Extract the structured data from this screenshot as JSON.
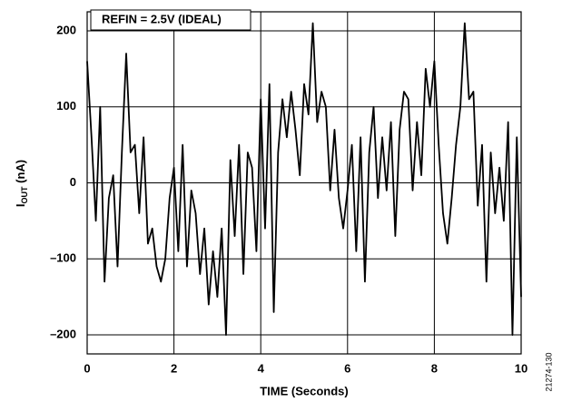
{
  "chart_data": {
    "type": "line",
    "annotation": "REFIN = 2.5V (IDEAL)",
    "x_label": "TIME (Seconds)",
    "y_label_parts": [
      "I",
      "OUT",
      " (nA)"
    ],
    "figure_id": "21274-130",
    "color": "#000000",
    "grid": true,
    "xlim": [
      0,
      10
    ],
    "ylim": [
      -225,
      225
    ],
    "xticks": [
      0,
      2,
      4,
      6,
      8,
      10
    ],
    "yticks": [
      {
        "value": -200,
        "label": "–200"
      },
      {
        "value": -100,
        "label": "–100"
      },
      0,
      100,
      200
    ],
    "x": [
      0,
      0.1,
      0.2,
      0.3,
      0.4,
      0.5,
      0.6,
      0.7,
      0.8,
      0.9,
      1,
      1.1,
      1.2,
      1.3,
      1.4,
      1.5,
      1.6,
      1.7,
      1.8,
      1.9,
      2,
      2.1,
      2.2,
      2.3,
      2.4,
      2.5,
      2.6,
      2.7,
      2.8,
      2.9,
      3,
      3.1,
      3.2,
      3.3,
      3.4,
      3.5,
      3.6,
      3.7,
      3.8,
      3.9,
      4,
      4.1,
      4.2,
      4.3,
      4.4,
      4.5,
      4.6,
      4.7,
      4.8,
      4.9,
      5,
      5.1,
      5.2,
      5.3,
      5.4,
      5.5,
      5.6,
      5.7,
      5.8,
      5.9,
      6,
      6.1,
      6.2,
      6.3,
      6.4,
      6.5,
      6.6,
      6.7,
      6.8,
      6.9,
      7,
      7.1,
      7.2,
      7.3,
      7.4,
      7.5,
      7.6,
      7.7,
      7.8,
      7.9,
      8,
      8.1,
      8.2,
      8.3,
      8.4,
      8.5,
      8.6,
      8.7,
      8.8,
      8.9,
      9,
      9.1,
      9.2,
      9.3,
      9.4,
      9.5,
      9.6,
      9.7,
      9.8,
      9.9,
      10
    ],
    "values": [
      160,
      60,
      -50,
      100,
      -130,
      -20,
      10,
      -110,
      40,
      170,
      40,
      50,
      -40,
      60,
      -80,
      -60,
      -110,
      -130,
      -100,
      -20,
      20,
      -90,
      50,
      -110,
      -10,
      -40,
      -120,
      -60,
      -160,
      -90,
      -150,
      -60,
      -200,
      30,
      -70,
      50,
      -120,
      40,
      20,
      -90,
      110,
      -60,
      130,
      -170,
      40,
      110,
      60,
      120,
      70,
      10,
      130,
      90,
      210,
      80,
      120,
      100,
      -10,
      70,
      -20,
      -60,
      -10,
      50,
      -90,
      60,
      -130,
      40,
      100,
      -20,
      60,
      -10,
      80,
      -70,
      70,
      120,
      110,
      -10,
      80,
      10,
      150,
      100,
      160,
      50,
      -40,
      -80,
      -20,
      50,
      100,
      210,
      110,
      120,
      -30,
      50,
      -130,
      40,
      -40,
      20,
      -50,
      80,
      -200,
      60,
      -150
    ]
  }
}
